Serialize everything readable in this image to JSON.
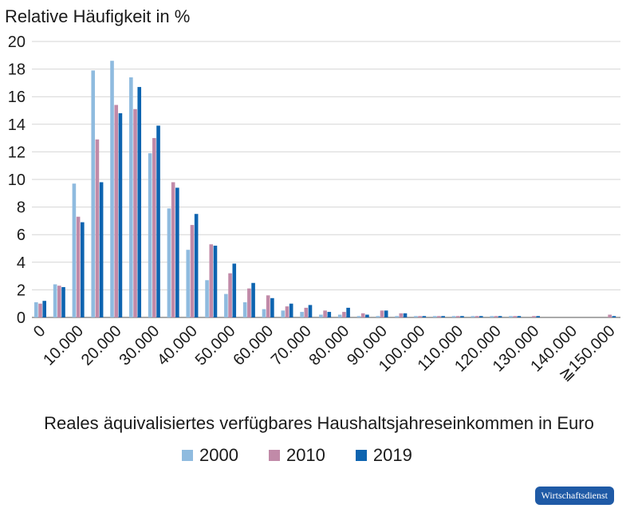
{
  "chart_data": {
    "type": "bar",
    "ylabel": "Relative Häufigkeit in %",
    "xlabel": "Reales äquivalisiertes verfügbares Haushaltsjahreseinkommen in Euro",
    "ylim": [
      0,
      20
    ],
    "yticks": [
      "0",
      "2",
      "4",
      "6",
      "8",
      "10",
      "12",
      "14",
      "16",
      "18",
      "20"
    ],
    "x_tick_labels": [
      "0",
      "10.000",
      "20.000",
      "30.000",
      "40.000",
      "50.000",
      "60.000",
      "70.000",
      "80.000",
      "90.000",
      "100.000",
      "110.000",
      "120.000",
      "130.000",
      "140.000",
      "≧150.000"
    ],
    "grid": true,
    "legend_position": "bottom",
    "series": [
      {
        "name": "2000",
        "color": "#8fbbdf",
        "values": [
          1.1,
          2.4,
          9.7,
          17.9,
          18.6,
          17.4,
          11.9,
          7.9,
          4.9,
          2.7,
          1.7,
          1.1,
          0.6,
          0.5,
          0.4,
          0.2,
          0.2,
          0.1,
          0.1,
          0.1,
          0.1,
          0.1,
          0.1,
          0.1,
          0.1,
          0.1,
          0.0,
          0.0,
          0.0,
          0.0,
          0.0
        ]
      },
      {
        "name": "2010",
        "color": "#c18aa8",
        "values": [
          1.0,
          2.3,
          7.3,
          12.9,
          15.4,
          15.1,
          13.0,
          9.8,
          6.7,
          5.3,
          3.2,
          2.1,
          1.6,
          0.8,
          0.7,
          0.5,
          0.4,
          0.3,
          0.5,
          0.3,
          0.1,
          0.1,
          0.1,
          0.1,
          0.1,
          0.1,
          0.1,
          0.0,
          0.0,
          0.0,
          0.2
        ]
      },
      {
        "name": "2019",
        "color": "#0d64b0",
        "values": [
          1.2,
          2.2,
          6.9,
          9.8,
          14.8,
          16.7,
          13.9,
          9.4,
          7.5,
          5.2,
          3.9,
          2.5,
          1.4,
          1.0,
          0.9,
          0.4,
          0.7,
          0.2,
          0.5,
          0.3,
          0.1,
          0.1,
          0.1,
          0.1,
          0.1,
          0.1,
          0.1,
          0.0,
          0.0,
          0.0,
          0.1
        ]
      }
    ]
  },
  "badge": "Wirtschaftsdienst"
}
